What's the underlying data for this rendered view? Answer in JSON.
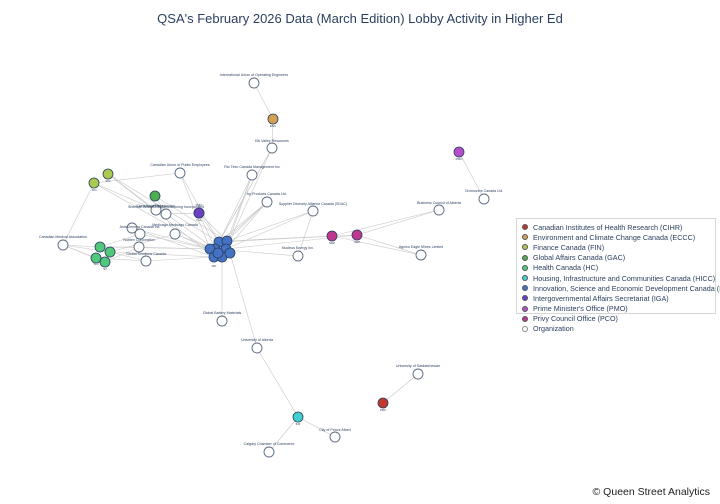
{
  "title": "QSA's February 2026 Data (March Edition) Lobby Activity in Higher Ed",
  "credit": "© Queen Street Analytics",
  "colors": {
    "CIHR": "#c0392b",
    "ECCC": "#d4a153",
    "FIN": "#a9c94f",
    "GAC": "#4caf50",
    "HC": "#52c97a",
    "HICC": "#40d0d0",
    "ISED": "#4472c4",
    "IGA": "#6a3fc4",
    "PMO": "#b44fc9",
    "PCO": "#c0378f",
    "ORG": "#ffffff"
  },
  "legend": [
    {
      "label": "Canadian Institutes of Health Research (CIHR)",
      "key": "CIHR"
    },
    {
      "label": "Environment and Climate Change Canada (ECCC)",
      "key": "ECCC"
    },
    {
      "label": "Finance Canada (FIN)",
      "key": "FIN"
    },
    {
      "label": "Global Affairs Canada (GAC)",
      "key": "GAC"
    },
    {
      "label": "Health Canada (HC)",
      "key": "HC"
    },
    {
      "label": "Housing, Infrastructure and Communities Canada (HICC)",
      "key": "HICC"
    },
    {
      "label": "Innovation, Science and Economic Development Canada (ISED)",
      "key": "ISED"
    },
    {
      "label": "Intergovernmental Affairs Secretariat (IGA)",
      "key": "IGA"
    },
    {
      "label": "Prime Minister's Office (PMO)",
      "key": "PMO"
    },
    {
      "label": "Privy Council Office (PCO)",
      "key": "PCO"
    },
    {
      "label": "Organization",
      "key": "ORG"
    }
  ],
  "nodes": [
    {
      "id": "iuoe",
      "label": "International Union of Operating Engineers",
      "type": "ORG"
    },
    {
      "id": "eccc1",
      "label": "ENV",
      "type": "ECCC"
    },
    {
      "id": "elk",
      "label": "Elk Valley Resources",
      "type": "ORG"
    },
    {
      "id": "riotinto",
      "label": "Rio Tinto Canada Management Inc",
      "type": "ORG"
    },
    {
      "id": "cupe",
      "label": "Canadian Union of Public Employees",
      "type": "ORG"
    },
    {
      "id": "pmo1",
      "label": "PMO",
      "type": "PMO"
    },
    {
      "id": "chemtrade",
      "label": "Chemtrade Logistics Inc.",
      "type": "ORG"
    },
    {
      "id": "fin1",
      "label": "FIN",
      "type": "FIN"
    },
    {
      "id": "fin2",
      "label": "FIN",
      "type": "FIN"
    },
    {
      "id": "gac1",
      "label": "",
      "type": "GAC"
    },
    {
      "id": "sheridan",
      "label": "Sheridan Advanced Manufacturing Incorporated",
      "type": "ORG"
    },
    {
      "id": "byproducts",
      "label": "by-Products Canada Ltd.",
      "type": "ORG"
    },
    {
      "id": "sdac",
      "label": "Supplier Diversity Alliance Canada (SDAC)",
      "type": "ORG"
    },
    {
      "id": "bcalberta",
      "label": "Business Council of Alberta",
      "type": "ORG"
    },
    {
      "id": "iga1",
      "label": "IGA",
      "type": "IGA"
    },
    {
      "id": "org_left1",
      "label": "",
      "type": "ORG"
    },
    {
      "id": "astrazeneca",
      "label": "AstraZeneca Canada Inc.",
      "type": "ORG"
    },
    {
      "id": "medicago",
      "label": "Medicago Medicago Canada",
      "type": "ORG"
    },
    {
      "id": "cma",
      "label": "Canadian Medical Association",
      "type": "ORG"
    },
    {
      "id": "hc1",
      "label": "",
      "type": "HC"
    },
    {
      "id": "hc2",
      "label": "",
      "type": "HC"
    },
    {
      "id": "hc3",
      "label": "SCI",
      "type": "HC"
    },
    {
      "id": "hc4",
      "label": "ST",
      "type": "HC"
    },
    {
      "id": "natcorp",
      "label": "Nutrien Corporation",
      "type": "ORG"
    },
    {
      "id": "gsc",
      "label": "Global Solutions Canada",
      "type": "ORG"
    },
    {
      "id": "isedA",
      "label": "",
      "type": "ISED"
    },
    {
      "id": "isedB",
      "label": "",
      "type": "ISED"
    },
    {
      "id": "isedC",
      "label": "",
      "type": "ISED"
    },
    {
      "id": "isedD",
      "label": "",
      "type": "ISED"
    },
    {
      "id": "isedE",
      "label": "",
      "type": "ISED"
    },
    {
      "id": "isedF",
      "label": "ISP",
      "type": "ISED"
    },
    {
      "id": "isedG",
      "label": "",
      "type": "ISED"
    },
    {
      "id": "isedH",
      "label": "",
      "type": "ISED"
    },
    {
      "id": "isedI",
      "label": "",
      "type": "ISED"
    },
    {
      "id": "nucleus",
      "label": "Nucleus Energy Inc.",
      "type": "ORG"
    },
    {
      "id": "pco1",
      "label": "SDP",
      "type": "PCO"
    },
    {
      "id": "pco2",
      "label": "OEP",
      "type": "PCO"
    },
    {
      "id": "agnico",
      "label": "Agnico Eagle Mines Limited",
      "type": "ORG"
    },
    {
      "id": "pmo2",
      "label": "PMO",
      "type": "PMO"
    },
    {
      "id": "civi",
      "label": "Civimovers Canada Ltd.",
      "type": "ORG"
    },
    {
      "id": "globalbattery",
      "label": "Global Battery Materials",
      "type": "ORG"
    },
    {
      "id": "ualberta",
      "label": "University of Alberta",
      "type": "ORG"
    },
    {
      "id": "usask",
      "label": "University of Saskatchewan",
      "type": "ORG"
    },
    {
      "id": "cihr1",
      "label": "PRC",
      "type": "CIHR"
    },
    {
      "id": "hicc1",
      "label": "INF",
      "type": "HICC"
    },
    {
      "id": "princealbert",
      "label": "City of Prince Albert",
      "type": "ORG"
    },
    {
      "id": "calgarycc",
      "label": "Calgary Chamber of Commerce",
      "type": "ORG"
    }
  ],
  "edges": [
    [
      "iuoe",
      "eccc1"
    ],
    [
      "eccc1",
      "elk"
    ],
    [
      "elk",
      "isedD"
    ],
    [
      "elk",
      "isedC"
    ],
    [
      "elk",
      "isedA"
    ],
    [
      "riotinto",
      "isedA"
    ],
    [
      "riotinto",
      "isedB"
    ],
    [
      "riotinto",
      "isedD"
    ],
    [
      "cupe",
      "isedA"
    ],
    [
      "cupe",
      "isedE"
    ],
    [
      "cupe",
      "fin1"
    ],
    [
      "fin1",
      "chemtrade"
    ],
    [
      "fin2",
      "chemtrade"
    ],
    [
      "fin1",
      "isedE"
    ],
    [
      "fin2",
      "isedF"
    ],
    [
      "fin1",
      "cma"
    ],
    [
      "fin2",
      "isedA"
    ],
    [
      "gac1",
      "sheridan"
    ],
    [
      "gac1",
      "isedB"
    ],
    [
      "sheridan",
      "isedC"
    ],
    [
      "sheridan",
      "iga1"
    ],
    [
      "byproducts",
      "isedA"
    ],
    [
      "byproducts",
      "isedB"
    ],
    [
      "byproducts",
      "isedC"
    ],
    [
      "byproducts",
      "isedD"
    ],
    [
      "sdac",
      "isedB"
    ],
    [
      "sdac",
      "isedD"
    ],
    [
      "sdac",
      "nucleus"
    ],
    [
      "bcalberta",
      "pco2"
    ],
    [
      "bcalberta",
      "pco1"
    ],
    [
      "iga1",
      "isedA"
    ],
    [
      "iga1",
      "isedC"
    ],
    [
      "org_left1",
      "isedE"
    ],
    [
      "org_left1",
      "isedF"
    ],
    [
      "astrazeneca",
      "isedE"
    ],
    [
      "astrazeneca",
      "hc1"
    ],
    [
      "medicago",
      "isedC"
    ],
    [
      "medicago",
      "hc2"
    ],
    [
      "medicago",
      "isedE"
    ],
    [
      "cma",
      "hc1"
    ],
    [
      "cma",
      "hc2"
    ],
    [
      "cma",
      "hc3"
    ],
    [
      "cma",
      "hc4"
    ],
    [
      "hc1",
      "natcorp"
    ],
    [
      "hc2",
      "gsc"
    ],
    [
      "hc3",
      "gsc"
    ],
    [
      "hc4",
      "natcorp"
    ],
    [
      "hc1",
      "isedE"
    ],
    [
      "hc2",
      "isedF"
    ],
    [
      "natcorp",
      "isedE"
    ],
    [
      "gsc",
      "isedF"
    ],
    [
      "isedA",
      "isedB"
    ],
    [
      "isedB",
      "isedC"
    ],
    [
      "isedC",
      "isedD"
    ],
    [
      "isedD",
      "isedE"
    ],
    [
      "isedE",
      "isedF"
    ],
    [
      "isedF",
      "isedG"
    ],
    [
      "isedG",
      "isedH"
    ],
    [
      "isedH",
      "isedI"
    ],
    [
      "isedA",
      "isedI"
    ],
    [
      "isedC",
      "nucleus"
    ],
    [
      "isedB",
      "pco1"
    ],
    [
      "isedD",
      "pco2"
    ],
    [
      "isedA",
      "pco2"
    ],
    [
      "pco2",
      "agnico"
    ],
    [
      "pco1",
      "agnico"
    ],
    [
      "pmo2",
      "civi"
    ],
    [
      "isedG",
      "globalbattery"
    ],
    [
      "isedH",
      "ualberta"
    ],
    [
      "ualberta",
      "hicc1"
    ],
    [
      "hicc1",
      "princealbert"
    ],
    [
      "hicc1",
      "calgarycc"
    ],
    [
      "usask",
      "cihr1"
    ],
    [
      "pmo1",
      "isedB"
    ],
    [
      "pmo1",
      "sheridan"
    ]
  ]
}
